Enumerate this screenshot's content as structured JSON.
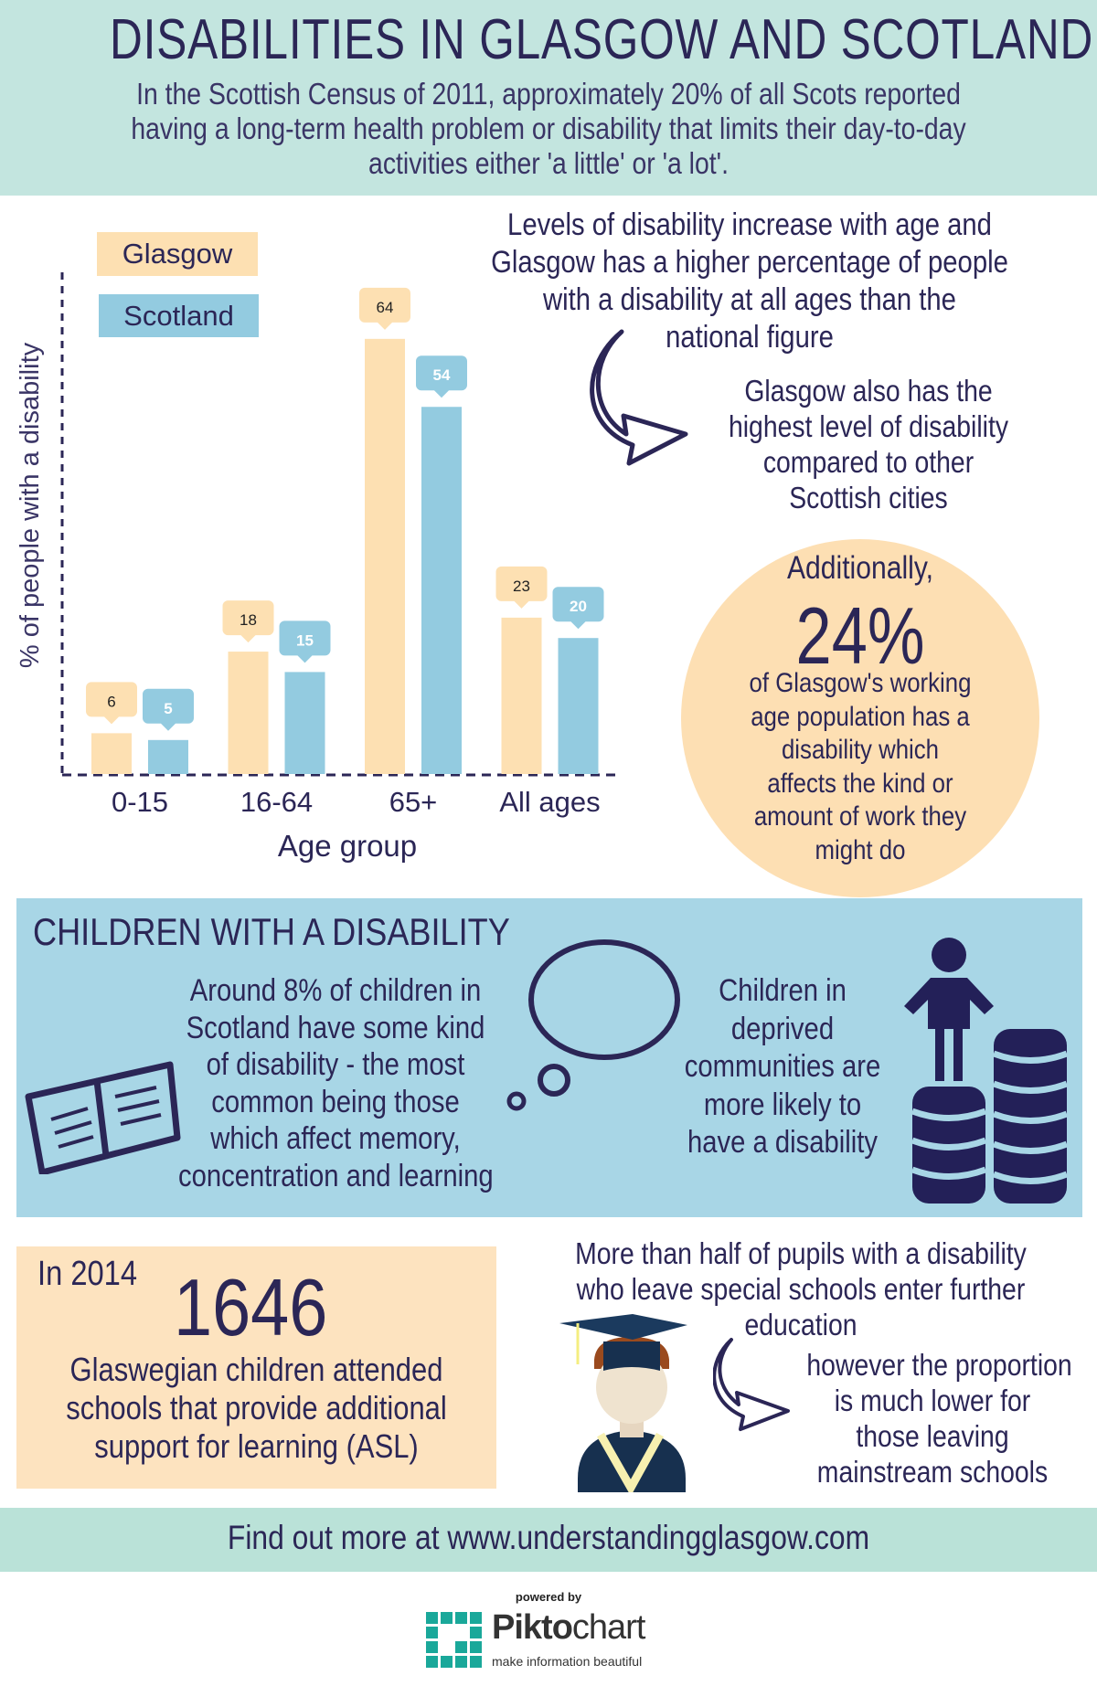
{
  "header": {
    "title": "DISABILITIES IN GLASGOW AND SCOTLAND",
    "intro_lines": [
      "In the Scottish Census of 2011, approximately 20% of all Scots reported",
      "having a long-term health problem or disability that limits their day-to-day",
      "activities either 'a little' or 'a lot'."
    ]
  },
  "chart_data": {
    "type": "bar",
    "title": "",
    "xlabel": "Age group",
    "ylabel": "% of people with a disability",
    "categories": [
      "0-15",
      "16-64",
      "65+",
      "All ages"
    ],
    "series": [
      {
        "name": "Glasgow",
        "color": "#fde0b2",
        "label_color": "#222222",
        "values": [
          6,
          18,
          64,
          23
        ]
      },
      {
        "name": "Scotland",
        "color": "#93cbe0",
        "label_color": "#ffffff",
        "values": [
          5,
          15,
          54,
          20
        ]
      }
    ],
    "ylim": [
      0,
      70
    ],
    "grid": false,
    "legend": "top-left"
  },
  "findings": {
    "levels_lines": [
      "Levels of disability increase with age and",
      "Glasgow has a higher percentage of people",
      "with a disability at all ages than the",
      "national figure"
    ],
    "cities_lines": [
      "Glasgow also has the",
      "highest level of disability",
      "compared to other",
      "Scottish cities"
    ],
    "additionally": "Additionally,",
    "working_pct": "24%",
    "working_lines": [
      "of Glasgow's working",
      "age population has a",
      "disability which",
      "affects the kind or",
      "amount of work they",
      "might do"
    ]
  },
  "children": {
    "title": "CHILDREN WITH A DISABILITY",
    "around_lines": [
      "Around 8% of children in",
      "Scotland have some kind",
      "of disability - the most",
      "common being those",
      "which affect memory,",
      "concentration and learning"
    ],
    "deprived_lines": [
      "Children in",
      "deprived",
      "communities are",
      "more likely to",
      "have a disability"
    ]
  },
  "asl": {
    "year": "In 2014",
    "count": "1646",
    "lines": [
      "Glaswegian children attended",
      "schools that provide additional",
      "support for learning (ASL)"
    ]
  },
  "pupils": {
    "more_lines": [
      "More than half of pupils with a disability",
      "who leave special schools enter further",
      "education"
    ],
    "however_lines": [
      "however the proportion",
      "is much lower for",
      "those leaving",
      "mainstream schools"
    ]
  },
  "footer": {
    "text": "Find out more at www.understandingglasgow.com"
  },
  "branding": {
    "powered_by": "powered by",
    "logo_bold": "Pikto",
    "logo_light": "chart",
    "tagline": "make information beautiful"
  },
  "colors": {
    "navy": "#2b2656",
    "teal": "#c3e5df",
    "peach": "#fde0b2",
    "blue": "#93cbe0"
  }
}
